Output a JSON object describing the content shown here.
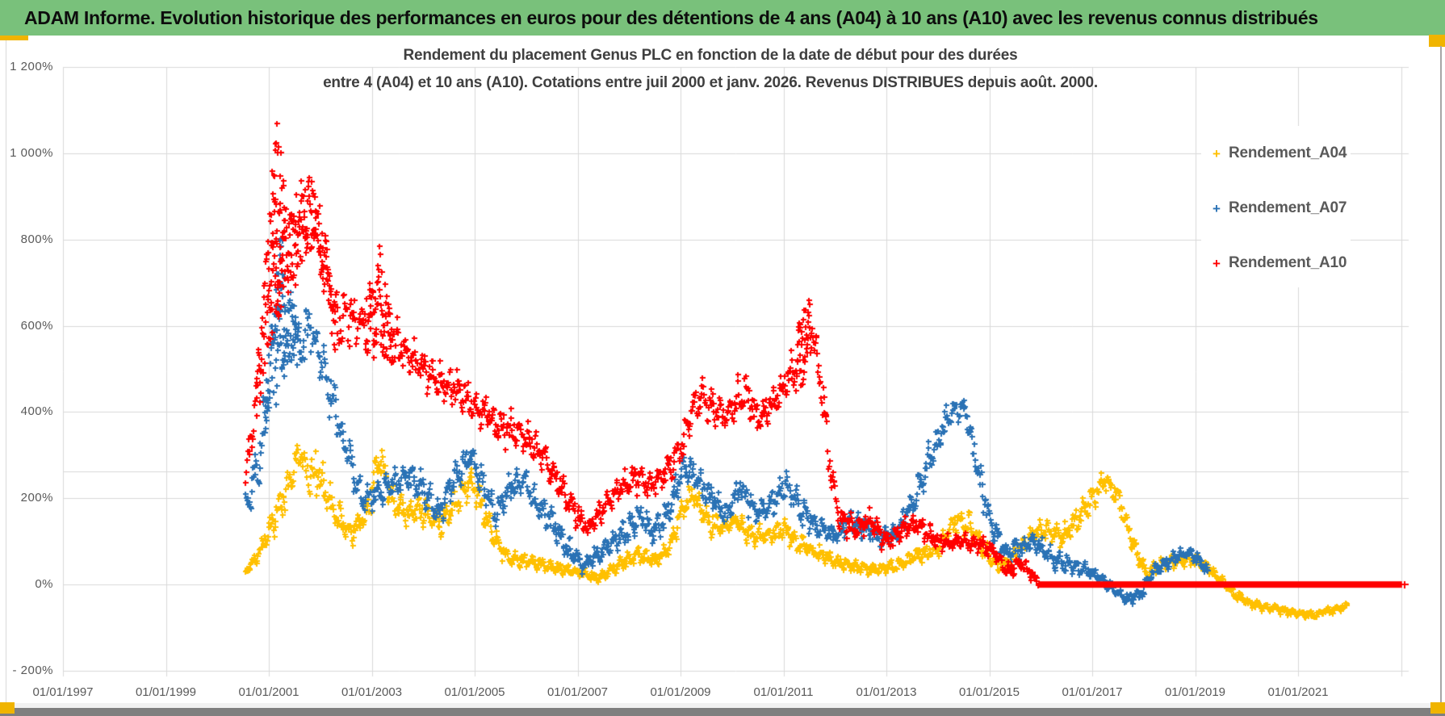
{
  "header": {
    "title": "ADAM Informe. Evolution historique des performances en euros pour des détentions de 4 ans (A04) à 10 ans (A10) avec les revenus connus distribués"
  },
  "chart": {
    "title_line1": "Rendement du placement Genus PLC en fonction de la date de début pour des durées",
    "title_line2": "entre 4 (A04) et 10 ans (A10).  Cotations entre juil 2000 et janv. 2026. Revenus DISTRIBUES depuis août. 2000."
  },
  "colors": {
    "header_green": "#79c17b",
    "accent_yellow": "#f0b400",
    "series_a04": "#FFC000",
    "series_a07": "#2A72B5",
    "series_a10": "#FF0000",
    "gridline": "#d9d9d9",
    "tick_text": "#595959",
    "title_text": "#3f3f3f"
  },
  "legend": {
    "items": [
      {
        "label": "Rendement_A04",
        "color": "#FFC000",
        "marker": "plus"
      },
      {
        "label": "Rendement_A07",
        "color": "#2A72B5",
        "marker": "plus"
      },
      {
        "label": "Rendement_A10",
        "color": "#FF0000",
        "marker": "plus"
      }
    ]
  },
  "chart_data": {
    "type": "scatter",
    "title": "Rendement du placement Genus PLC en fonction de la date de début pour des durées entre 4 (A04) et 10 ans (A10). Cotations entre juil 2000 et janv. 2026. Revenus DISTRIBUES depuis août. 2000.",
    "marker": "plus",
    "grid": true,
    "legend_position": "right-top",
    "y_axis": {
      "min": -200,
      "max": 1200,
      "tick_step": 200,
      "unit": "%",
      "tick_labels": [
        "1 200%",
        "1 000%",
        "800%",
        "600%",
        "400%",
        "200%",
        "0%",
        "- 200%"
      ],
      "tick_values": [
        1200,
        1000,
        800,
        600,
        400,
        200,
        0,
        -200
      ]
    },
    "x_axis": {
      "min_year": 1997,
      "max_year": 2023.08,
      "tick_interval_years": 2,
      "tick_labels": [
        "01/01/1997",
        "01/01/1999",
        "01/01/2001",
        "01/01/2003",
        "01/01/2005",
        "01/01/2007",
        "01/01/2009",
        "01/01/2011",
        "01/01/2013",
        "01/01/2015",
        "01/01/2017",
        "01/01/2019",
        "01/01/2021"
      ],
      "tick_values": [
        1997,
        1999,
        2001,
        2003,
        2005,
        2007,
        2009,
        2011,
        2013,
        2015,
        2017,
        2019,
        2021
      ]
    },
    "reference_line": {
      "value": 262
    },
    "series": [
      {
        "name": "Rendement_A04",
        "color": "#FFC000",
        "seed": 11,
        "step_years": 0.013,
        "anchors": [
          [
            2000.55,
            32,
            10
          ],
          [
            2000.8,
            70,
            20
          ],
          [
            2001.0,
            130,
            30
          ],
          [
            2001.3,
            200,
            45
          ],
          [
            2001.6,
            310,
            40
          ],
          [
            2001.75,
            260,
            50
          ],
          [
            2002.0,
            250,
            60
          ],
          [
            2002.3,
            160,
            40
          ],
          [
            2002.6,
            120,
            30
          ],
          [
            2002.9,
            170,
            40
          ],
          [
            2003.15,
            300,
            40
          ],
          [
            2003.4,
            200,
            40
          ],
          [
            2003.7,
            165,
            35
          ],
          [
            2004.0,
            175,
            35
          ],
          [
            2004.35,
            140,
            30
          ],
          [
            2004.7,
            210,
            40
          ],
          [
            2004.95,
            240,
            35
          ],
          [
            2005.2,
            160,
            40
          ],
          [
            2005.45,
            90,
            25
          ],
          [
            2005.7,
            60,
            18
          ],
          [
            2006.0,
            55,
            15
          ],
          [
            2006.5,
            40,
            15
          ],
          [
            2007.0,
            30,
            12
          ],
          [
            2007.4,
            15,
            10
          ],
          [
            2007.8,
            45,
            15
          ],
          [
            2008.2,
            70,
            20
          ],
          [
            2008.5,
            55,
            15
          ],
          [
            2008.8,
            90,
            25
          ],
          [
            2009.05,
            180,
            35
          ],
          [
            2009.25,
            210,
            30
          ],
          [
            2009.5,
            150,
            30
          ],
          [
            2009.8,
            130,
            25
          ],
          [
            2010.1,
            150,
            25
          ],
          [
            2010.4,
            110,
            25
          ],
          [
            2010.7,
            115,
            20
          ],
          [
            2011.0,
            130,
            25
          ],
          [
            2011.3,
            95,
            25
          ],
          [
            2011.7,
            70,
            20
          ],
          [
            2012.0,
            55,
            15
          ],
          [
            2012.4,
            40,
            15
          ],
          [
            2012.8,
            35,
            12
          ],
          [
            2013.2,
            45,
            15
          ],
          [
            2013.6,
            70,
            18
          ],
          [
            2014.0,
            80,
            20
          ],
          [
            2014.35,
            150,
            30
          ],
          [
            2014.6,
            140,
            30
          ],
          [
            2014.9,
            80,
            25
          ],
          [
            2015.2,
            40,
            15
          ],
          [
            2015.5,
            70,
            20
          ],
          [
            2015.8,
            110,
            25
          ],
          [
            2016.1,
            130,
            25
          ],
          [
            2016.4,
            110,
            25
          ],
          [
            2016.7,
            150,
            30
          ],
          [
            2017.0,
            200,
            30
          ],
          [
            2017.25,
            245,
            25
          ],
          [
            2017.5,
            200,
            35
          ],
          [
            2017.8,
            90,
            30
          ],
          [
            2018.05,
            25,
            15
          ],
          [
            2018.3,
            45,
            15
          ],
          [
            2018.6,
            55,
            15
          ],
          [
            2018.9,
            60,
            15
          ],
          [
            2019.2,
            45,
            12
          ],
          [
            2019.5,
            10,
            10
          ],
          [
            2019.8,
            -25,
            10
          ],
          [
            2020.1,
            -45,
            10
          ],
          [
            2020.5,
            -55,
            10
          ],
          [
            2020.9,
            -65,
            8
          ],
          [
            2021.3,
            -70,
            8
          ],
          [
            2021.6,
            -60,
            8
          ],
          [
            2021.95,
            -50,
            8
          ]
        ]
      },
      {
        "name": "Rendement_A07",
        "color": "#2A72B5",
        "seed": 22,
        "step_years": 0.013,
        "anchors": [
          [
            2000.55,
            175,
            40
          ],
          [
            2000.8,
            290,
            60
          ],
          [
            2001.05,
            520,
            90
          ],
          [
            2001.2,
            650,
            220
          ],
          [
            2001.4,
            600,
            90
          ],
          [
            2001.6,
            560,
            70
          ],
          [
            2001.8,
            600,
            60
          ],
          [
            2002.0,
            520,
            70
          ],
          [
            2002.3,
            400,
            50
          ],
          [
            2002.55,
            300,
            45
          ],
          [
            2002.8,
            200,
            40
          ],
          [
            2003.1,
            215,
            40
          ],
          [
            2003.4,
            230,
            35
          ],
          [
            2003.7,
            250,
            35
          ],
          [
            2004.0,
            220,
            40
          ],
          [
            2004.3,
            160,
            35
          ],
          [
            2004.6,
            250,
            40
          ],
          [
            2004.9,
            300,
            35
          ],
          [
            2005.15,
            230,
            40
          ],
          [
            2005.4,
            160,
            35
          ],
          [
            2005.7,
            230,
            35
          ],
          [
            2005.95,
            245,
            30
          ],
          [
            2006.2,
            180,
            35
          ],
          [
            2006.5,
            150,
            35
          ],
          [
            2006.8,
            85,
            25
          ],
          [
            2007.1,
            45,
            20
          ],
          [
            2007.5,
            80,
            25
          ],
          [
            2007.9,
            120,
            30
          ],
          [
            2008.2,
            160,
            35
          ],
          [
            2008.5,
            120,
            30
          ],
          [
            2008.8,
            180,
            35
          ],
          [
            2009.05,
            270,
            40
          ],
          [
            2009.3,
            250,
            35
          ],
          [
            2009.6,
            200,
            35
          ],
          [
            2009.9,
            160,
            30
          ],
          [
            2010.15,
            230,
            35
          ],
          [
            2010.45,
            170,
            30
          ],
          [
            2010.75,
            185,
            30
          ],
          [
            2011.05,
            235,
            35
          ],
          [
            2011.35,
            170,
            35
          ],
          [
            2011.7,
            130,
            30
          ],
          [
            2012.0,
            115,
            25
          ],
          [
            2012.3,
            150,
            30
          ],
          [
            2012.6,
            130,
            25
          ],
          [
            2012.9,
            110,
            25
          ],
          [
            2013.2,
            120,
            25
          ],
          [
            2013.5,
            190,
            35
          ],
          [
            2013.8,
            280,
            40
          ],
          [
            2014.1,
            360,
            45
          ],
          [
            2014.35,
            420,
            30
          ],
          [
            2014.55,
            400,
            40
          ],
          [
            2014.8,
            250,
            45
          ],
          [
            2015.05,
            130,
            35
          ],
          [
            2015.3,
            75,
            25
          ],
          [
            2015.6,
            85,
            25
          ],
          [
            2015.9,
            100,
            25
          ],
          [
            2016.2,
            65,
            25
          ],
          [
            2016.5,
            45,
            20
          ],
          [
            2016.8,
            40,
            18
          ],
          [
            2017.1,
            20,
            15
          ],
          [
            2017.4,
            -10,
            15
          ],
          [
            2017.7,
            -35,
            12
          ],
          [
            2017.95,
            -20,
            15
          ],
          [
            2018.2,
            35,
            18
          ],
          [
            2018.5,
            55,
            18
          ],
          [
            2018.8,
            75,
            15
          ],
          [
            2019.0,
            65,
            15
          ],
          [
            2019.25,
            30,
            12
          ]
        ]
      },
      {
        "name": "Rendement_A10",
        "color": "#FF0000",
        "seed": 33,
        "step_years": 0.013,
        "anchors": [
          [
            2000.55,
            250,
            40
          ],
          [
            2000.75,
            420,
            70
          ],
          [
            2000.95,
            650,
            120
          ],
          [
            2001.15,
            850,
            250
          ],
          [
            2001.35,
            780,
            120
          ],
          [
            2001.6,
            820,
            100
          ],
          [
            2001.85,
            870,
            90
          ],
          [
            2002.05,
            760,
            90
          ],
          [
            2002.3,
            600,
            70
          ],
          [
            2002.6,
            620,
            60
          ],
          [
            2002.85,
            600,
            60
          ],
          [
            2003.15,
            650,
            140
          ],
          [
            2003.45,
            560,
            60
          ],
          [
            2003.7,
            540,
            50
          ],
          [
            2004.0,
            500,
            50
          ],
          [
            2004.3,
            470,
            45
          ],
          [
            2004.6,
            460,
            45
          ],
          [
            2004.9,
            420,
            40
          ],
          [
            2005.2,
            400,
            40
          ],
          [
            2005.5,
            360,
            45
          ],
          [
            2005.8,
            360,
            40
          ],
          [
            2006.1,
            330,
            40
          ],
          [
            2006.4,
            280,
            40
          ],
          [
            2006.7,
            220,
            35
          ],
          [
            2007.0,
            160,
            30
          ],
          [
            2007.2,
            130,
            25
          ],
          [
            2007.5,
            180,
            30
          ],
          [
            2007.8,
            220,
            30
          ],
          [
            2008.1,
            250,
            35
          ],
          [
            2008.4,
            230,
            30
          ],
          [
            2008.7,
            260,
            35
          ],
          [
            2009.0,
            320,
            40
          ],
          [
            2009.3,
            430,
            45
          ],
          [
            2009.6,
            420,
            40
          ],
          [
            2009.9,
            390,
            40
          ],
          [
            2010.2,
            450,
            45
          ],
          [
            2010.5,
            390,
            40
          ],
          [
            2010.8,
            420,
            40
          ],
          [
            2011.1,
            480,
            45
          ],
          [
            2011.42,
            560,
            110
          ],
          [
            2011.55,
            600,
            60
          ],
          [
            2011.7,
            480,
            60
          ],
          [
            2011.85,
            340,
            60
          ],
          [
            2011.95,
            230,
            50
          ],
          [
            2012.1,
            150,
            35
          ],
          [
            2012.4,
            130,
            30
          ],
          [
            2012.7,
            150,
            30
          ],
          [
            2013.0,
            95,
            25
          ],
          [
            2013.3,
            130,
            25
          ],
          [
            2013.6,
            140,
            25
          ],
          [
            2013.9,
            110,
            25
          ],
          [
            2014.2,
            95,
            20
          ],
          [
            2014.5,
            100,
            20
          ],
          [
            2014.8,
            95,
            20
          ],
          [
            2015.1,
            75,
            20
          ],
          [
            2015.35,
            30,
            18
          ],
          [
            2015.6,
            55,
            18
          ],
          [
            2015.85,
            20,
            15
          ],
          [
            2015.95,
            5,
            8
          ]
        ],
        "flat_zero_line": {
          "from": 2015.95,
          "to": 2023.02,
          "value": 0,
          "thickness_px": 8
        }
      }
    ]
  }
}
